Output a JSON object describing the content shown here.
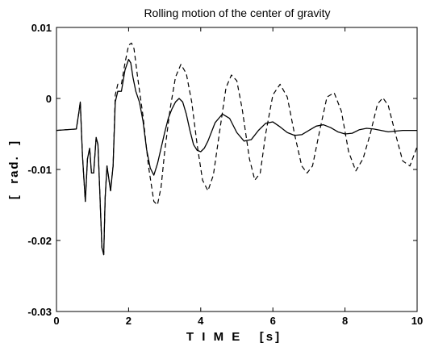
{
  "chart_data": {
    "type": "line",
    "title": "Rolling motion of the center of gravity",
    "xlabel": "T I M E   [s]",
    "ylabel": "[  rad.  ]",
    "xlim": [
      0,
      10
    ],
    "ylim": [
      -0.03,
      0.01
    ],
    "xticks": [
      "0",
      "2",
      "4",
      "6",
      "8",
      "10"
    ],
    "yticks": [
      "0.01",
      "0",
      "-0.01",
      "-0.02",
      "-0.03"
    ],
    "xtick_values": [
      0,
      2,
      4,
      6,
      8,
      10
    ],
    "ytick_values": [
      0.01,
      0,
      -0.01,
      -0.02,
      -0.03
    ],
    "grid": false,
    "series": [
      {
        "style": "solid",
        "x": [
          0,
          0.55,
          0.62,
          0.66,
          0.72,
          0.8,
          0.86,
          0.92,
          0.97,
          1.03,
          1.1,
          1.15,
          1.2,
          1.26,
          1.31,
          1.35,
          1.4,
          1.5,
          1.57,
          1.63,
          1.7,
          1.8,
          1.9,
          2.0,
          2.06,
          2.12,
          2.2,
          2.3,
          2.4,
          2.5,
          2.6,
          2.7,
          2.8,
          2.9,
          3.0,
          3.1,
          3.2,
          3.3,
          3.4,
          3.5,
          3.6,
          3.7,
          3.8,
          3.9,
          4.0,
          4.1,
          4.2,
          4.4,
          4.6,
          4.8,
          5.0,
          5.2,
          5.4,
          5.6,
          5.8,
          6.0,
          6.2,
          6.4,
          6.6,
          6.8,
          7.0,
          7.2,
          7.4,
          7.6,
          7.8,
          8.0,
          8.2,
          8.4,
          8.6,
          8.8,
          9.0,
          9.2,
          9.4,
          9.6,
          9.8,
          10.0
        ],
        "y": [
          -0.0045,
          -0.0043,
          -0.002,
          -0.0005,
          -0.008,
          -0.0145,
          -0.0085,
          -0.007,
          -0.0105,
          -0.0105,
          -0.0055,
          -0.0065,
          -0.013,
          -0.021,
          -0.022,
          -0.014,
          -0.0095,
          -0.013,
          -0.0095,
          -0.0005,
          0.001,
          0.001,
          0.004,
          0.0055,
          0.005,
          0.003,
          0.001,
          -0.0005,
          -0.0032,
          -0.0072,
          -0.0098,
          -0.0108,
          -0.0092,
          -0.007,
          -0.0048,
          -0.0028,
          -0.0015,
          -0.0005,
          0.0,
          -0.0005,
          -0.0022,
          -0.0045,
          -0.0065,
          -0.0073,
          -0.0075,
          -0.007,
          -0.006,
          -0.0034,
          -0.0022,
          -0.0028,
          -0.0048,
          -0.006,
          -0.0058,
          -0.0045,
          -0.0035,
          -0.0033,
          -0.004,
          -0.0048,
          -0.0052,
          -0.0051,
          -0.0045,
          -0.0039,
          -0.0037,
          -0.0041,
          -0.0047,
          -0.005,
          -0.0049,
          -0.0044,
          -0.0042,
          -0.0043,
          -0.0045,
          -0.0047,
          -0.0046,
          -0.0045,
          -0.0045,
          -0.0045
        ]
      },
      {
        "style": "dashed",
        "x": [
          0,
          0.55,
          0.62,
          0.66,
          0.72,
          0.8,
          0.86,
          0.92,
          0.97,
          1.03,
          1.1,
          1.15,
          1.2,
          1.26,
          1.31,
          1.35,
          1.4,
          1.5,
          1.57,
          1.63,
          1.7,
          1.8,
          1.9,
          2.0,
          2.08,
          2.15,
          2.25,
          2.4,
          2.55,
          2.7,
          2.8,
          2.9,
          3.0,
          3.15,
          3.3,
          3.45,
          3.6,
          3.75,
          3.9,
          4.05,
          4.2,
          4.35,
          4.5,
          4.7,
          4.85,
          5.0,
          5.15,
          5.35,
          5.5,
          5.65,
          5.8,
          6.0,
          6.2,
          6.4,
          6.6,
          6.8,
          6.95,
          7.1,
          7.3,
          7.5,
          7.7,
          7.9,
          8.1,
          8.3,
          8.5,
          8.7,
          8.9,
          9.05,
          9.2,
          9.4,
          9.6,
          9.8,
          10.0
        ],
        "y": [
          -0.0045,
          -0.0043,
          -0.002,
          -0.0005,
          -0.008,
          -0.0145,
          -0.0085,
          -0.007,
          -0.0105,
          -0.0105,
          -0.0055,
          -0.0065,
          -0.013,
          -0.021,
          -0.022,
          -0.014,
          -0.0095,
          -0.013,
          -0.0095,
          0.0005,
          0.002,
          0.002,
          0.005,
          0.0075,
          0.0078,
          0.007,
          0.003,
          -0.0025,
          -0.0095,
          -0.0145,
          -0.015,
          -0.0125,
          -0.0075,
          -0.0015,
          0.003,
          0.0048,
          0.0035,
          -0.0005,
          -0.0065,
          -0.0115,
          -0.013,
          -0.0108,
          -0.0055,
          0.0015,
          0.0033,
          0.0025,
          -0.0015,
          -0.0085,
          -0.0115,
          -0.0105,
          -0.005,
          0.0005,
          0.002,
          0.0002,
          -0.005,
          -0.0095,
          -0.0105,
          -0.0095,
          -0.0045,
          0.0002,
          0.0008,
          -0.0018,
          -0.0075,
          -0.0102,
          -0.0085,
          -0.005,
          -0.0008,
          0.0001,
          -0.001,
          -0.005,
          -0.0088,
          -0.0095,
          -0.0068
        ]
      }
    ]
  }
}
